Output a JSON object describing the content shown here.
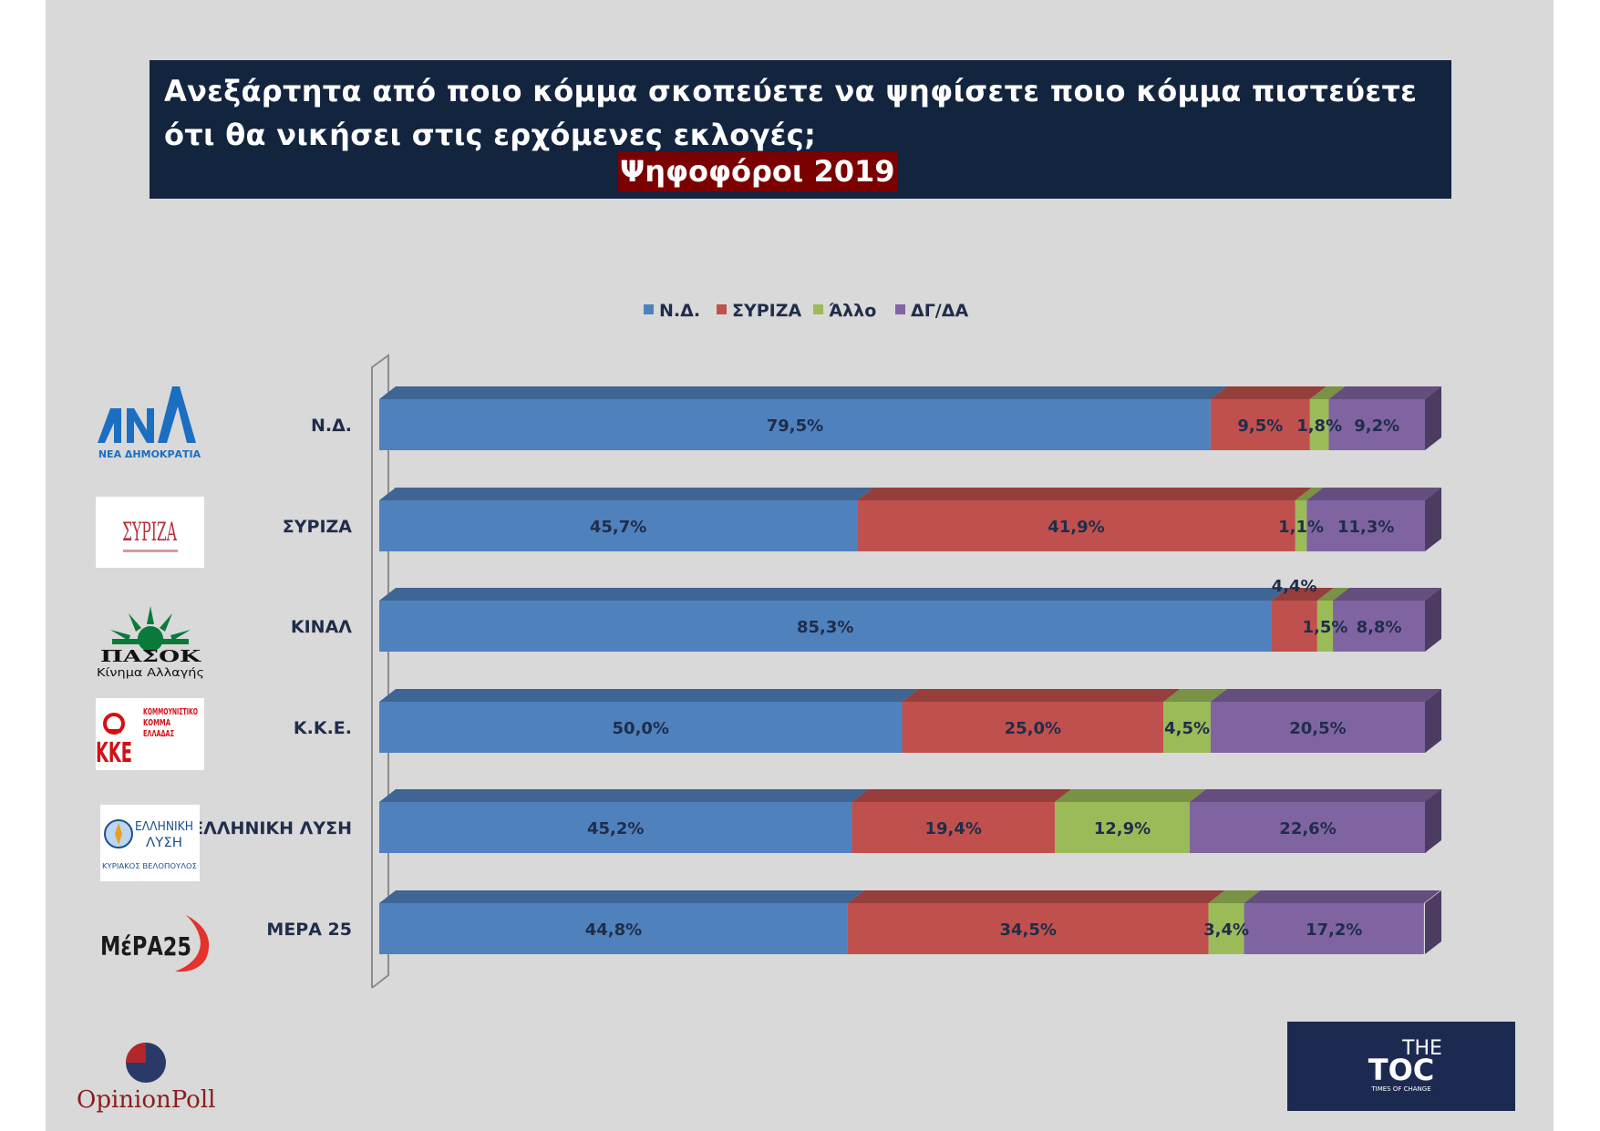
{
  "header": {
    "title": "Ανεξάρτητα από ποιο κόμμα σκοπεύετε να ψηφίσετε ποιο κόμμα πιστεύετε ότι θα νικήσει στις ερχόμενες εκλογές;",
    "subtitle": "Ψηφοφόροι 2019"
  },
  "chart_data": {
    "type": "bar",
    "orientation": "horizontal",
    "stacked": true,
    "percent_stacked": true,
    "legend_position": "top",
    "categories": [
      "Ν.Δ.",
      "ΣΥΡΙΖΑ",
      "ΚΙΝΑΛ",
      "Κ.Κ.Ε.",
      "ΕΛΛΗΝΙΚΗ ΛΥΣΗ",
      "ΜΕΡΑ 25"
    ],
    "series": [
      {
        "name": "Ν.Δ.",
        "color": "#4f81bd",
        "values": [
          79.5,
          45.7,
          85.3,
          50.0,
          45.2,
          44.8
        ],
        "labels": [
          "79,5%",
          "45,7%",
          "85,3%",
          "50,0%",
          "45,2%",
          "44,8%"
        ]
      },
      {
        "name": "ΣΥΡΙΖΑ",
        "color": "#c0504d",
        "values": [
          9.5,
          41.9,
          4.4,
          25.0,
          19.4,
          34.5
        ],
        "labels": [
          "9,5%",
          "41,9%",
          "4,4%",
          "25,0%",
          "19,4%",
          "34,5%"
        ]
      },
      {
        "name": "Άλλο",
        "color": "#9bbb59",
        "values": [
          1.8,
          1.1,
          1.5,
          4.5,
          12.9,
          3.4
        ],
        "labels": [
          "1,8%",
          "1,1%",
          "1,5%",
          "4,5%",
          "12,9%",
          "3,4%"
        ]
      },
      {
        "name": "ΔΓ/ΔΑ",
        "color": "#8064a2",
        "values": [
          9.2,
          11.3,
          8.8,
          20.5,
          22.6,
          17.2
        ],
        "labels": [
          "9,2%",
          "11,3%",
          "8,8%",
          "20,5%",
          "22,6%",
          "17,2%"
        ]
      }
    ]
  },
  "logos": [
    {
      "icon": "nd-logo",
      "text": "ΝΕΑ ΔΗΜΟΚΡΑΤΙΑ",
      "accent": "#1b6ec2"
    },
    {
      "icon": "syriza-logo",
      "text": "ΣΥΡΙΖΑ",
      "accent": "#b5303a"
    },
    {
      "icon": "pasok-logo",
      "text": "ΠΑΣΟΚ",
      "text2": "Κίνημα Αλλαγής",
      "accent": "#0a7a3a"
    },
    {
      "icon": "kke-logo",
      "text": "ΚΚΕ",
      "text2": "ΚΟΜΜΟΥΝΙΣΤΙΚΟ ΚΟΜΜΑ ΕΛΛΑΔΑΣ",
      "accent": "#d40f14"
    },
    {
      "icon": "elliniki-lysi-logo",
      "text": "ΕΛΛΗΝΙΚΗ ΛΥΣΗ",
      "text2": "ΚΥΡΙΑΚΟΣ ΒΕΛΟΠΟΥΛΟΣ",
      "accent": "#1a4f8f"
    },
    {
      "icon": "mera25-logo",
      "text": "ΜέΡΑ25",
      "accent": "#e5322d"
    }
  ],
  "brand": {
    "opinion_poll": "OpinionPoll",
    "toc_main": "THE",
    "toc_sub": "TOC",
    "toc_tag": "TIMES OF CHANGE"
  }
}
